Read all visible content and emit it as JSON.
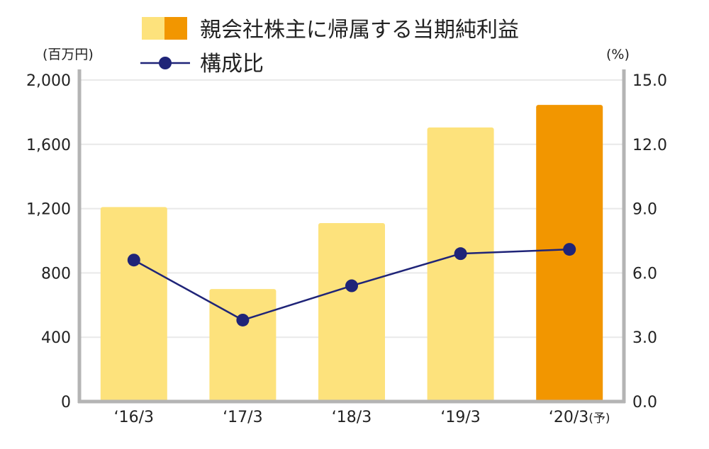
{
  "chart_data": {
    "type": "bar",
    "categories": [
      "‘16/3",
      "‘17/3",
      "‘18/3",
      "‘19/3",
      "‘20/3"
    ],
    "category_suffix": [
      "",
      "",
      "",
      "",
      "(予)"
    ],
    "series": [
      {
        "name": "親会社株主に帰属する当期純利益",
        "type": "bar",
        "axis": "left",
        "values": [
          1210,
          700,
          1110,
          1705,
          1845
        ],
        "colors": [
          "#fde27c",
          "#fde27c",
          "#fde27c",
          "#fde27c",
          "#f29600"
        ]
      },
      {
        "name": "構成比",
        "type": "line",
        "axis": "right",
        "values": [
          6.6,
          3.8,
          5.4,
          6.9,
          7.1
        ],
        "color": "#1f2478"
      }
    ],
    "y_left": {
      "unit_label": "(百万円)",
      "range": [
        0,
        2000
      ],
      "ticks": [
        0,
        400,
        800,
        1200,
        1600,
        2000
      ],
      "tick_labels": [
        "0",
        "400",
        "800",
        "1,200",
        "1,600",
        "2,000"
      ]
    },
    "y_right": {
      "unit_label": "(%)",
      "range": [
        0,
        15
      ],
      "ticks": [
        0,
        3,
        6,
        9,
        12,
        15
      ],
      "tick_labels": [
        "0.0",
        "3.0",
        "6.0",
        "9.0",
        "12.0",
        "15.0"
      ]
    },
    "grid": true,
    "legend_position": "top",
    "legend": {
      "bar_label": "親会社株主に帰属する当期純利益",
      "line_label": "構成比",
      "bar_colors": [
        "#fde27c",
        "#f29600"
      ],
      "line_color": "#1f2478"
    }
  }
}
